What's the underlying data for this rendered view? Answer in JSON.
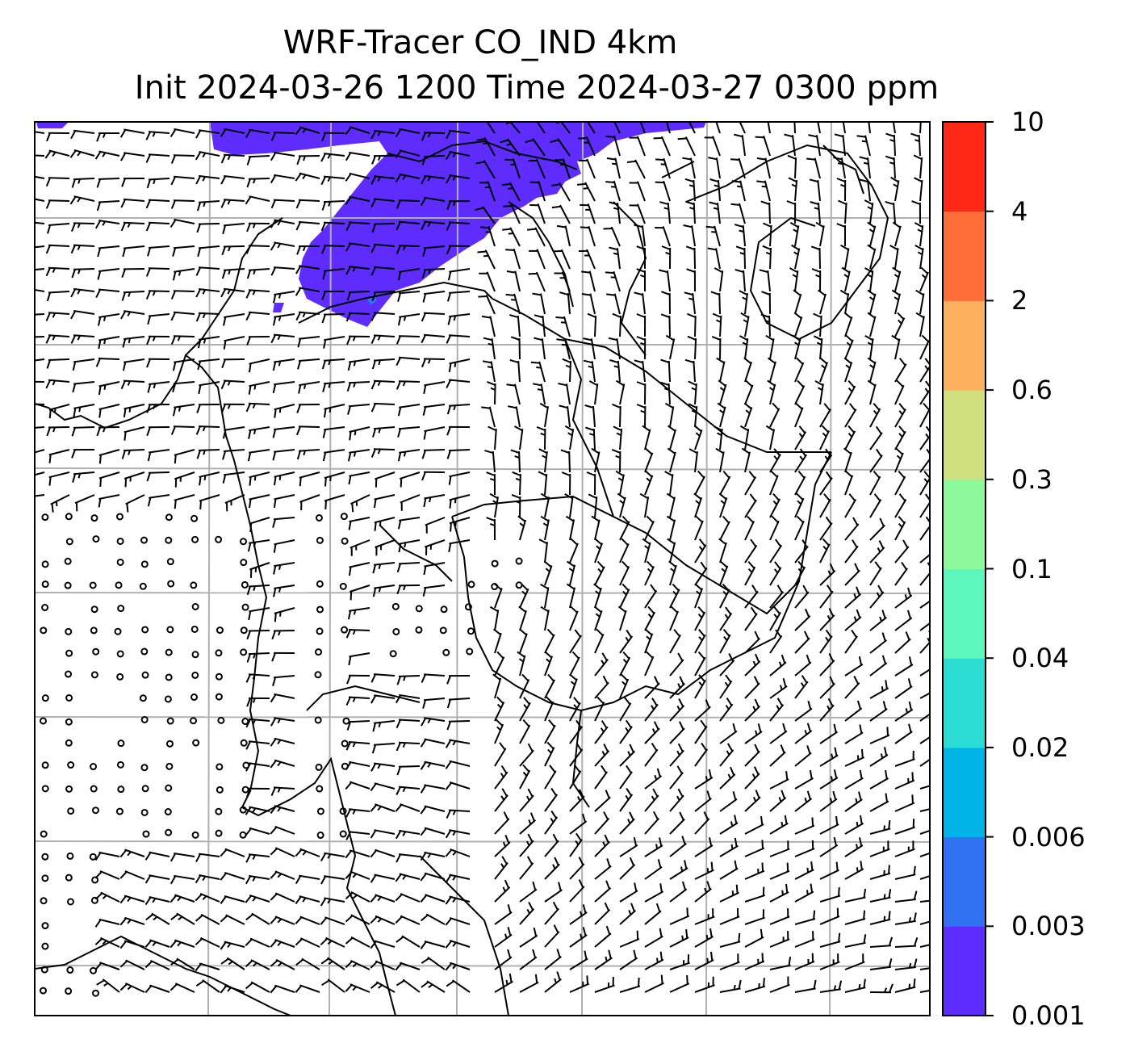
{
  "title": {
    "line1": "WRF-Tracer CO_IND 4km",
    "line2": "Init 2024-03-26 1200 Time 2024-03-27 0300 ppm"
  },
  "colorbar": {
    "levels": [
      "0.001",
      "0.003",
      "0.006",
      "0.02",
      "0.04",
      "0.1",
      "0.3",
      "0.6",
      "2",
      "4",
      "10"
    ],
    "colors": [
      "#5e2cff",
      "#3072f2",
      "#00b4e8",
      "#2cddd3",
      "#5cf8bd",
      "#8cfa9b",
      "#d0e07f",
      "#fdb05e",
      "#fd6e38",
      "#ff2816"
    ]
  },
  "map": {
    "gridlines": true,
    "gridline_color": "#b0b0b0",
    "field_visible_color": "#5e2cff",
    "wind_glyphs": "barbs"
  }
}
